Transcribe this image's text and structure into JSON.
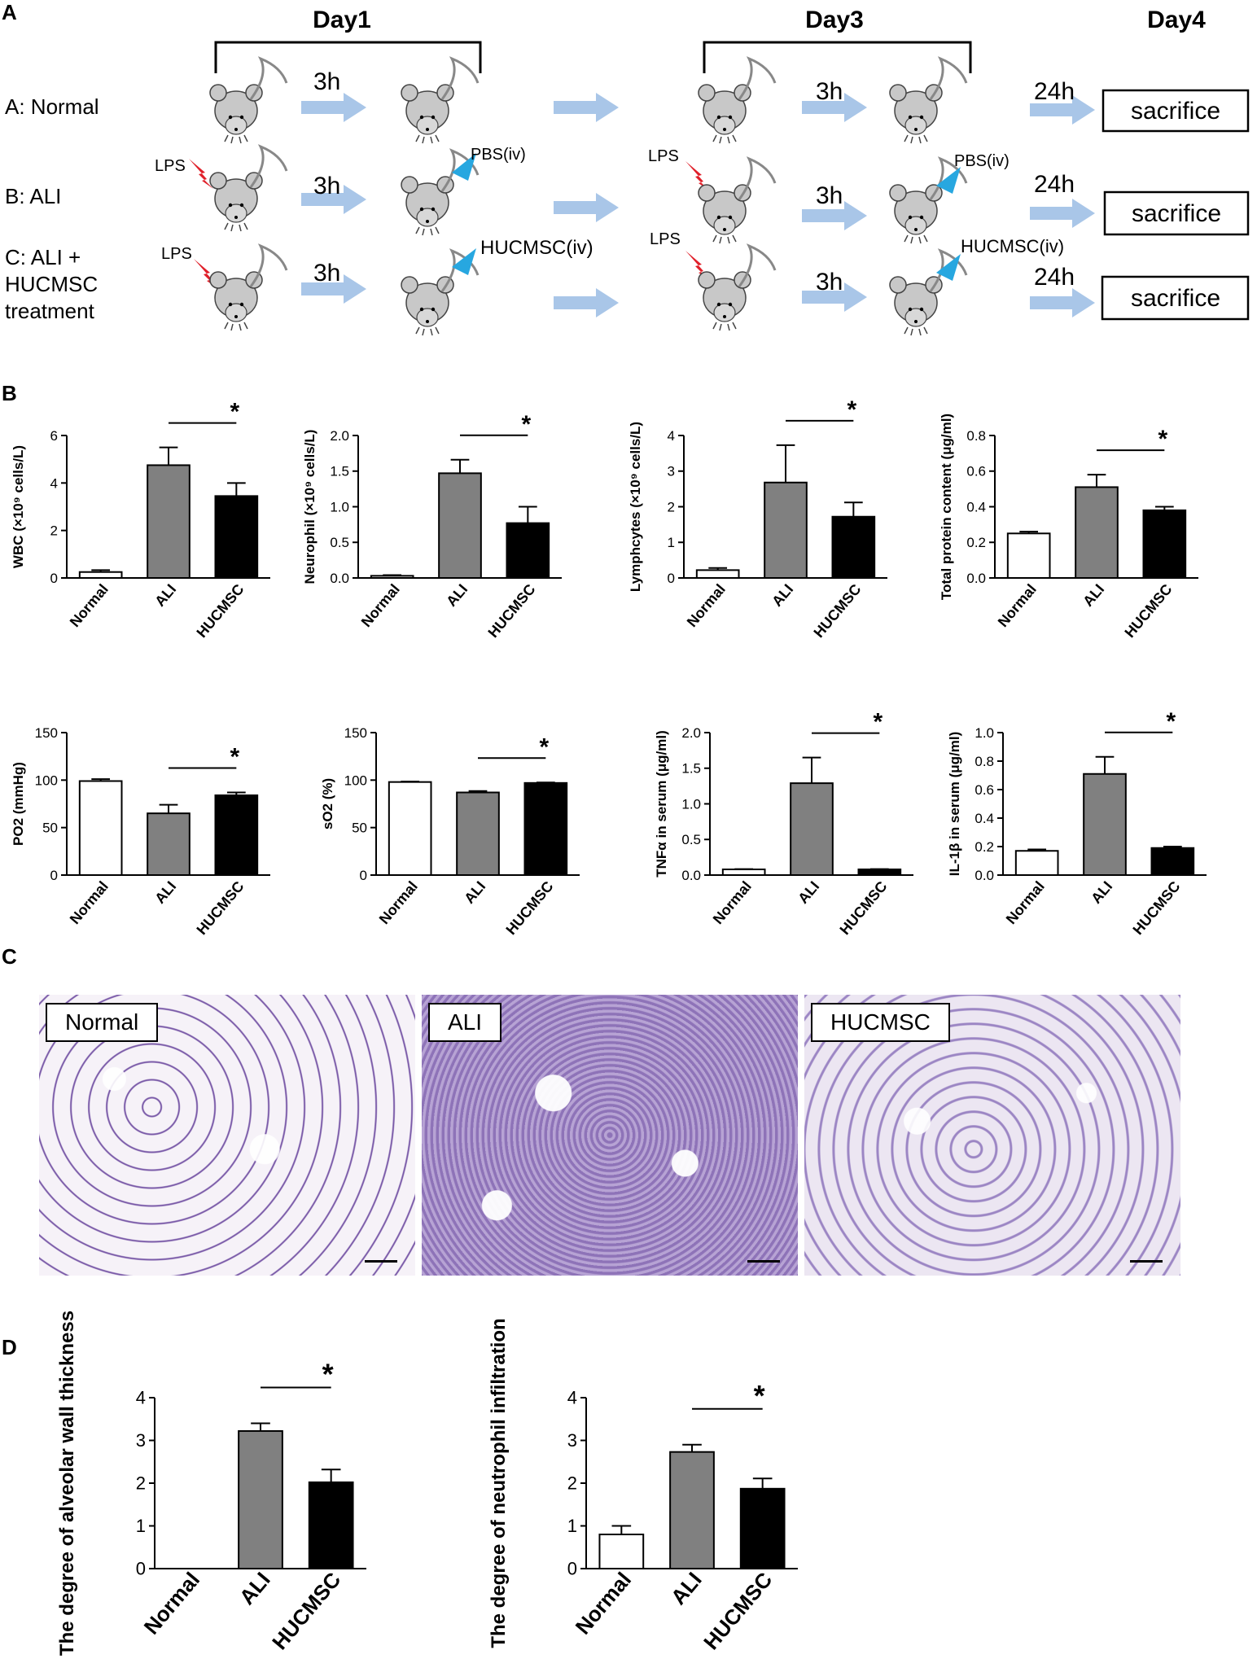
{
  "panels": {
    "a": "A",
    "b": "B",
    "c": "C",
    "d": "D"
  },
  "schema": {
    "days": [
      "Day1",
      "Day3",
      "Day4"
    ],
    "groups": [
      "A: Normal",
      "B: ALI",
      "C:  ALI  +",
      "HUCMSC",
      "treatment"
    ],
    "lps": "LPS",
    "pbs": "PBS(iv)",
    "hucmsc_iv": "HUCMSC(iv)",
    "h3": "3h",
    "h24": "24h",
    "sacrifice": "sacrifice"
  },
  "colors": {
    "normal": "#ffffff",
    "ali": "#808080",
    "hucmsc": "#000000",
    "arrow": "#a9c6e8",
    "lps": "#e0202a",
    "injection": "#27a7e0",
    "mouse": "#c8c8c8"
  },
  "significance": "*",
  "chart_data": [
    {
      "type": "bar",
      "categories": [
        "Normal",
        "ALI",
        "HUCMSC"
      ],
      "values": [
        0.25,
        4.75,
        3.45
      ],
      "errors": [
        0.08,
        0.75,
        0.55
      ],
      "ylabel": "WBC (×10⁹ cells/L)",
      "ylim": [
        0,
        6
      ],
      "yticks": [
        "0",
        "2",
        "4",
        "6"
      ]
    },
    {
      "type": "bar",
      "categories": [
        "Normal",
        "ALI",
        "HUCMSC"
      ],
      "values": [
        0.03,
        1.47,
        0.77
      ],
      "errors": [
        0.01,
        0.19,
        0.23
      ],
      "ylabel": "Neurophil (×10⁹ cells/L)",
      "ylim": [
        0,
        2.0
      ],
      "yticks": [
        "0.0",
        "0.5",
        "1.0",
        "1.5",
        "2.0"
      ]
    },
    {
      "type": "bar",
      "categories": [
        "Normal",
        "ALI",
        "HUCMSC"
      ],
      "values": [
        0.22,
        2.68,
        1.72
      ],
      "errors": [
        0.06,
        1.05,
        0.4
      ],
      "ylabel": "Lymphcytes (×10⁹ cells/L)",
      "ylim": [
        0,
        4
      ],
      "yticks": [
        "0",
        "1",
        "2",
        "3",
        "4"
      ]
    },
    {
      "type": "bar",
      "categories": [
        "Normal",
        "ALI",
        "HUCMSC"
      ],
      "values": [
        0.25,
        0.51,
        0.38
      ],
      "errors": [
        0.01,
        0.07,
        0.02
      ],
      "ylabel": "Total protein content (μg/ml)",
      "ylim": [
        0,
        0.8
      ],
      "yticks": [
        "0.0",
        "0.2",
        "0.4",
        "0.6",
        "0.8"
      ]
    },
    {
      "type": "bar",
      "categories": [
        "Normal",
        "ALI",
        "HUCMSC"
      ],
      "values": [
        99,
        65,
        84
      ],
      "errors": [
        2,
        9,
        3
      ],
      "ylabel": "PO2 (mmHg)",
      "ylim": [
        0,
        150
      ],
      "yticks": [
        "0",
        "50",
        "100",
        "150"
      ]
    },
    {
      "type": "bar",
      "categories": [
        "Normal",
        "ALI",
        "HUCMSC"
      ],
      "values": [
        98,
        87,
        97
      ],
      "errors": [
        0.5,
        1.5,
        0.5
      ],
      "ylabel": "sO2 (%)",
      "ylim": [
        0,
        150
      ],
      "yticks": [
        "0",
        "50",
        "100",
        "150"
      ]
    },
    {
      "type": "bar",
      "categories": [
        "Normal",
        "ALI",
        "HUCMSC"
      ],
      "values": [
        0.08,
        1.29,
        0.08
      ],
      "errors": [
        0.005,
        0.36,
        0.005
      ],
      "ylabel": "TNFα in serum (μg/ml)",
      "ylim": [
        0,
        2.0
      ],
      "yticks": [
        "0.0",
        "0.5",
        "1.0",
        "1.5",
        "2.0"
      ]
    },
    {
      "type": "bar",
      "categories": [
        "Normal",
        "ALI",
        "HUCMSC"
      ],
      "values": [
        0.17,
        0.71,
        0.19
      ],
      "errors": [
        0.01,
        0.12,
        0.01
      ],
      "ylabel": "IL-1β in serum (μg/ml)",
      "ylim": [
        0,
        1.0
      ],
      "yticks": [
        "0.0",
        "0.2",
        "0.4",
        "0.6",
        "0.8",
        "1.0"
      ]
    },
    {
      "type": "bar",
      "categories": [
        "Normal",
        "ALI",
        "HUCMSC"
      ],
      "values": [
        0,
        3.22,
        2.02
      ],
      "errors": [
        0,
        0.18,
        0.3
      ],
      "ylabel": "The degree of alveolar wall thickness",
      "ylim": [
        0,
        4
      ],
      "yticks": [
        "0",
        "1",
        "2",
        "3",
        "4"
      ]
    },
    {
      "type": "bar",
      "categories": [
        "Normal",
        "ALI",
        "HUCMSC"
      ],
      "values": [
        0.8,
        2.73,
        1.87
      ],
      "errors": [
        0.2,
        0.17,
        0.24
      ],
      "ylabel": "The degree of neutrophil infiltration",
      "ylim": [
        0,
        4
      ],
      "yticks": [
        "0",
        "1",
        "2",
        "3",
        "4"
      ]
    }
  ],
  "histology": {
    "labels": [
      "Normal",
      "ALI",
      "HUCMSC"
    ]
  }
}
